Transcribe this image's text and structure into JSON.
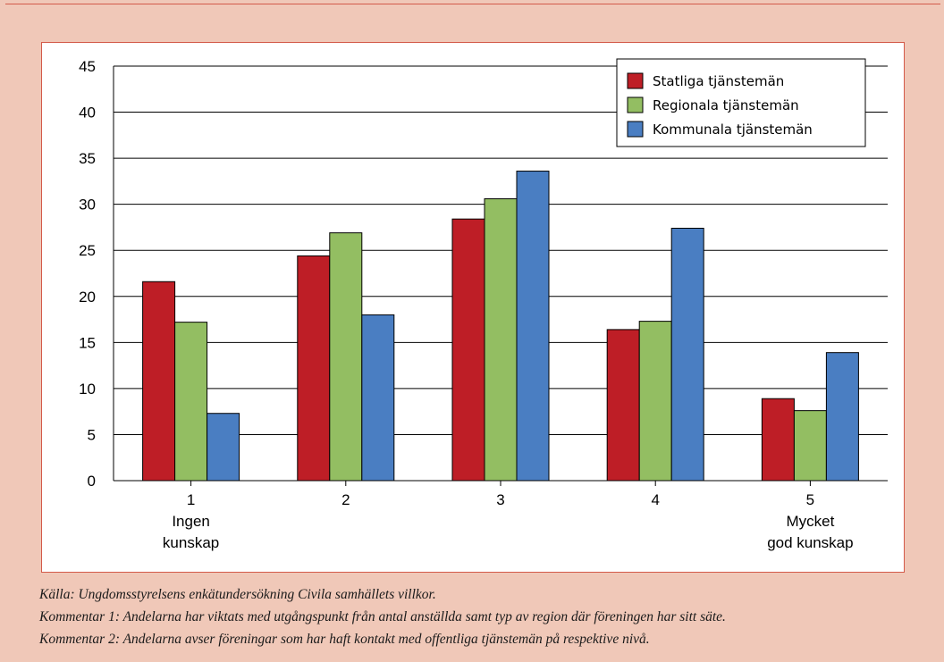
{
  "chart_data": {
    "type": "bar",
    "categories": [
      "1",
      "2",
      "3",
      "4",
      "5"
    ],
    "category_sublabels": [
      [
        "Ingen",
        "kunskap"
      ],
      [],
      [],
      [],
      [
        "Mycket",
        "god kunskap"
      ]
    ],
    "series": [
      {
        "name": "Statliga tjänstemän",
        "color": "#be1e26",
        "values": [
          21.6,
          24.4,
          28.4,
          16.4,
          8.9
        ]
      },
      {
        "name": "Regionala tjänstemän",
        "color": "#93be62",
        "values": [
          17.2,
          26.9,
          30.6,
          17.3,
          7.6
        ]
      },
      {
        "name": "Kommunala tjänstemän",
        "color": "#4a7ec2",
        "values": [
          7.3,
          18.0,
          33.6,
          27.4,
          13.9
        ]
      }
    ],
    "ylim": [
      0,
      45
    ],
    "yticks": [
      0,
      5,
      10,
      15,
      20,
      25,
      30,
      35,
      40,
      45
    ],
    "grid": true,
    "legend_position": "top-right"
  },
  "notes": {
    "source": "Källa: Ungdomsstyrelsens enkätundersökning Civila samhällets villkor.",
    "comment1": "Kommentar 1: Andelarna har viktats med utgångspunkt från antal anställda samt typ av region där föreningen har sitt säte.",
    "comment2": "Kommentar 2: Andelarna avser föreningar som har haft kontakt med offentliga tjänstemän på respektive nivå."
  }
}
